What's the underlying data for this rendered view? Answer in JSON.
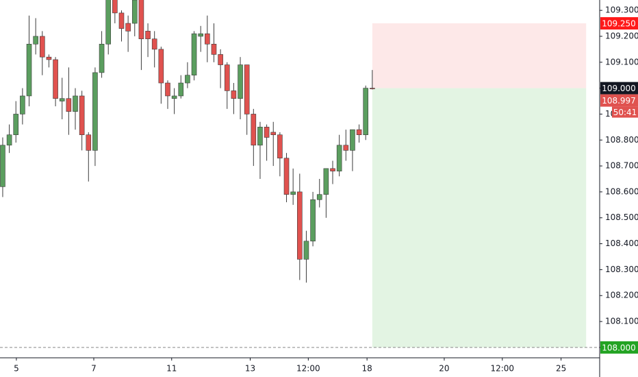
{
  "chart_data": {
    "type": "candlestick",
    "categories": [
      null,
      null,
      null,
      null,
      null,
      null,
      null,
      null,
      null,
      null,
      null,
      null,
      null,
      null,
      null,
      null,
      null,
      null,
      null,
      null,
      null,
      null,
      null,
      null,
      null,
      null,
      null,
      null,
      null,
      null,
      null,
      null,
      null,
      null,
      null,
      null,
      null,
      null,
      null,
      null,
      null,
      null,
      null,
      null,
      null,
      null,
      null,
      null,
      null,
      null,
      null,
      null,
      null,
      null,
      null,
      null,
      null
    ],
    "open": [
      108.62,
      108.78,
      108.82,
      108.9,
      108.97,
      109.17,
      109.2,
      109.12,
      109.11,
      108.95,
      108.96,
      108.91,
      108.97,
      108.82,
      108.76,
      109.06,
      109.17,
      109.35,
      109.29,
      109.25,
      109.25,
      109.36,
      109.22,
      109.19,
      109.15,
      109.02,
      108.96,
      108.97,
      109.02,
      109.05,
      109.2,
      109.21,
      109.17,
      109.13,
      109.09,
      108.99,
      108.96,
      109.09,
      108.9,
      108.78,
      108.85,
      108.83,
      108.82,
      108.73,
      108.59,
      108.6,
      108.34,
      108.41,
      108.57,
      108.59,
      108.69,
      108.68,
      108.78,
      108.76,
      108.84,
      108.82,
      109.0
    ],
    "high": [
      108.81,
      108.86,
      108.95,
      109.0,
      109.28,
      109.27,
      109.22,
      109.13,
      109.12,
      109.04,
      109.08,
      109.0,
      108.99,
      108.83,
      109.08,
      109.22,
      109.4,
      109.4,
      109.3,
      109.28,
      109.4,
      109.4,
      109.25,
      109.22,
      109.16,
      109.03,
      109.0,
      109.05,
      109.1,
      109.22,
      109.24,
      109.28,
      109.25,
      109.15,
      109.1,
      109.02,
      109.12,
      109.09,
      108.92,
      108.87,
      108.86,
      108.87,
      108.83,
      108.75,
      108.69,
      108.67,
      108.45,
      108.6,
      108.65,
      108.69,
      108.72,
      108.82,
      108.84,
      108.84,
      108.86,
      109.01,
      109.07
    ],
    "low": [
      108.58,
      108.75,
      108.79,
      108.86,
      108.93,
      109.13,
      109.05,
      109.08,
      108.93,
      108.88,
      108.82,
      108.84,
      108.76,
      108.64,
      108.7,
      109.04,
      109.13,
      109.25,
      109.18,
      109.14,
      109.2,
      109.07,
      109.12,
      109.08,
      108.94,
      108.92,
      108.9,
      108.96,
      109.0,
      109.03,
      109.14,
      109.1,
      109.1,
      109.0,
      108.92,
      108.9,
      108.88,
      108.82,
      108.7,
      108.65,
      108.72,
      108.7,
      108.66,
      108.56,
      108.55,
      108.26,
      108.25,
      108.39,
      108.54,
      108.5,
      108.63,
      108.66,
      108.72,
      108.68,
      108.79,
      108.8,
      108.995
    ],
    "close": [
      108.78,
      108.82,
      108.9,
      108.97,
      109.17,
      109.2,
      109.12,
      109.11,
      108.96,
      108.96,
      108.91,
      108.97,
      108.82,
      108.76,
      109.06,
      109.17,
      109.35,
      109.29,
      109.23,
      109.22,
      109.34,
      109.19,
      109.19,
      109.15,
      109.02,
      108.97,
      108.97,
      109.02,
      109.05,
      109.21,
      109.21,
      109.17,
      109.13,
      109.09,
      108.99,
      108.96,
      109.09,
      108.9,
      108.78,
      108.85,
      108.81,
      108.82,
      108.73,
      108.59,
      108.6,
      108.34,
      108.41,
      108.57,
      108.59,
      108.69,
      108.68,
      108.78,
      108.76,
      108.84,
      108.82,
      109.0,
      108.997
    ],
    "up_color": "#5b9e5f",
    "down_color": "#e0524f",
    "xlim": [
      -0.41,
      90.45
    ],
    "xticks": [
      {
        "value": 2.07,
        "label": "5"
      },
      {
        "value": 13.8,
        "label": "7"
      },
      {
        "value": 25.6,
        "label": "11"
      },
      {
        "value": 37.5,
        "label": "13"
      },
      {
        "value": 46.3,
        "label": "12:00"
      },
      {
        "value": 55.2,
        "label": "18"
      },
      {
        "value": 66.9,
        "label": "20"
      },
      {
        "value": 75.7,
        "label": "12:00"
      },
      {
        "value": 84.6,
        "label": "25"
      }
    ],
    "ylim": [
      107.96,
      109.34
    ],
    "yticks": [
      {
        "value": 109.3,
        "label": "109.300"
      },
      {
        "value": 109.2,
        "label": "109.200"
      },
      {
        "value": 109.1,
        "label": "109.100"
      },
      {
        "value": 109.0,
        "label": "109.000"
      },
      {
        "value": 108.9,
        "label": "108.900"
      },
      {
        "value": 108.8,
        "label": "108.800"
      },
      {
        "value": 108.7,
        "label": "108.700"
      },
      {
        "value": 108.6,
        "label": "108.600"
      },
      {
        "value": 108.5,
        "label": "108.500"
      },
      {
        "value": 108.4,
        "label": "108.400"
      },
      {
        "value": 108.3,
        "label": "108.300"
      },
      {
        "value": 108.2,
        "label": "108.200"
      },
      {
        "value": 108.1,
        "label": "108.100"
      },
      {
        "value": 108.0,
        "label": "108.000"
      }
    ],
    "position": {
      "x_range": [
        56,
        88.4
      ],
      "stop": 109.25,
      "entry": 109.0,
      "target": 108.0,
      "stop_color": "#fde8e8",
      "target_color": "#e3f4e3"
    },
    "price_tags": [
      {
        "value": 109.25,
        "label": "109.250",
        "color": "#ff1a1a"
      },
      {
        "value": 109.0,
        "label": "109.000",
        "color": "#131722"
      },
      {
        "value": 108.997,
        "label": "108.997",
        "color": "#e0524f",
        "countdown": "50:41"
      },
      {
        "value": 108.0,
        "label": "108.000",
        "color": "#22a322"
      }
    ]
  }
}
